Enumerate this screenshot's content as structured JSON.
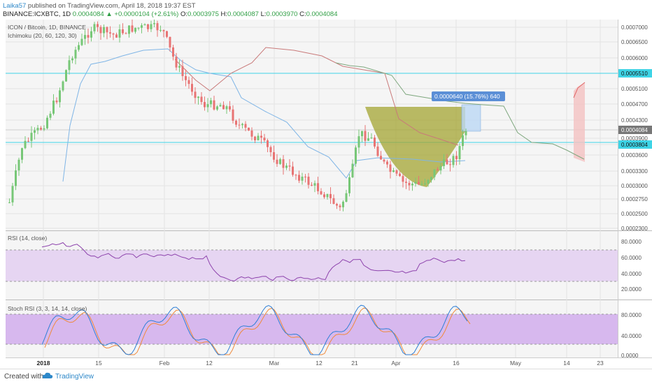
{
  "header": {
    "author": "Laika57",
    "published_text": "published on TradingView.com, April 18, 2018 19:37 EST"
  },
  "symbol_line": {
    "symbol": "BINANCE:ICXBTC, 1D",
    "last": "0.0004084",
    "change_arrow": "▲",
    "change": "+0.0000104 (+2.61%)",
    "open_label": "O:",
    "open": "0.0003975",
    "high_label": "H:",
    "high": "0.0004087",
    "low_label": "L:",
    "low": "0.0003970",
    "close_label": "C:",
    "close": "0.0004084"
  },
  "main_pane": {
    "title": "ICON / Bitcoin, 1D, BINANCE",
    "indicator": "Ichimoku (20, 60, 120, 30)",
    "price_labels": [
      "0.0007000",
      "0.0006500",
      "0.0006000",
      "0.0005510",
      "0.0005100",
      "0.0004700",
      "0.0004300",
      "0.0004084",
      "0.0003900",
      "0.0003804",
      "0.0003600",
      "0.0003300",
      "0.0003000",
      "0.0002750",
      "0.0002500",
      "0.0002300"
    ],
    "badge_labels": [
      "0.0005510",
      "0.0004084",
      "0.0003804"
    ],
    "measure_text": "0.0000640 (15.76%) 640"
  },
  "rsi_pane": {
    "title": "RSI (14, close)",
    "scale": [
      "80.0000",
      "60.0000",
      "40.0000",
      "20.0000"
    ]
  },
  "stoch_pane": {
    "title": "Stoch RSI (3, 3, 14, 14, close)",
    "scale": [
      "80.0000",
      "40.0000",
      "0.0000"
    ]
  },
  "time_axis": [
    "2018",
    "15",
    "Feb",
    "12",
    "Mar",
    "12",
    "21",
    "Apr",
    "16",
    "May",
    "14",
    "23"
  ],
  "footer": {
    "made_with": "Created with",
    "brand": "TradingView"
  },
  "colors": {
    "up_candle": "#77c777",
    "down_candle": "#e87474",
    "rsi_line": "#8e44ad",
    "rsi_band": "#e6d5f2",
    "stoch_k": "#2f7fd6",
    "stoch_d": "#f08a3c",
    "cyan_line": "#3ed4e6",
    "pattern_fill": "#a3a432"
  }
}
